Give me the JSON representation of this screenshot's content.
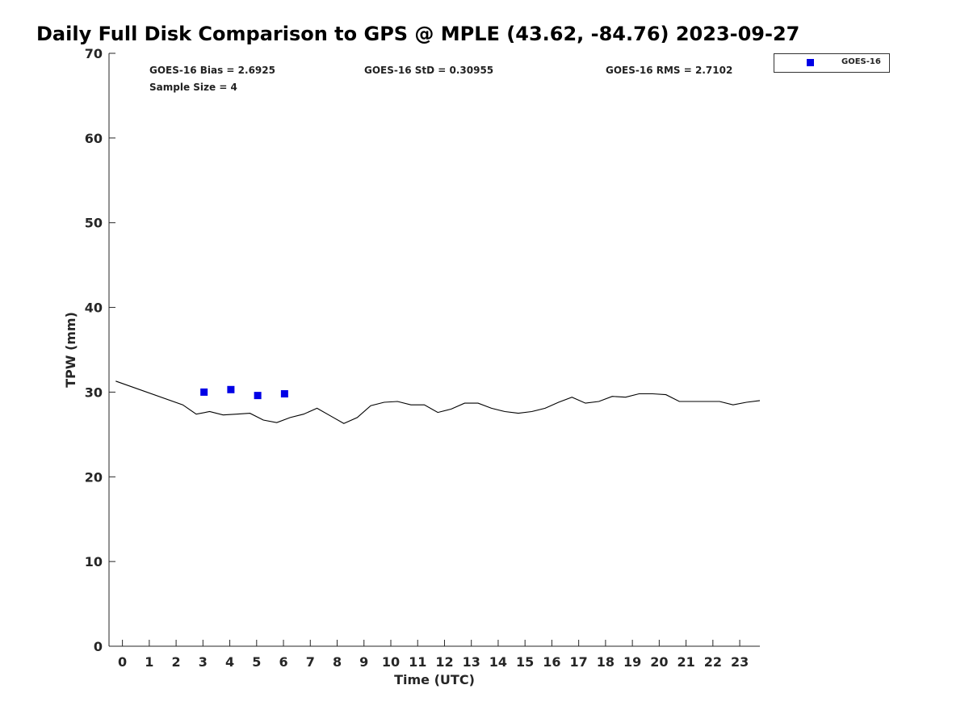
{
  "title": "Daily Full Disk Comparison to GPS @ MPLE (43.62, -84.76) 2023-09-27",
  "stats": {
    "bias": "GOES-16 Bias = 2.6925",
    "std": "GOES-16 StD = 0.30955",
    "rms": "GOES-16 RMS = 2.7102",
    "sample": "Sample Size = 4"
  },
  "legend": {
    "label": "GOES-16",
    "color": "#0000e6"
  },
  "chart_data": {
    "type": "scatter",
    "title": "Daily Full Disk Comparison to GPS @ MPLE (43.62, -84.76) 2023-09-27",
    "xlabel": "Time (UTC)",
    "ylabel": "TPW (mm)",
    "xlim": [
      -0.5,
      23.75
    ],
    "ylim": [
      0,
      70
    ],
    "xticks": [
      "0",
      "1",
      "2",
      "3",
      "4",
      "5",
      "6",
      "7",
      "8",
      "9",
      "10",
      "11",
      "12",
      "13",
      "14",
      "15",
      "16",
      "17",
      "18",
      "19",
      "20",
      "21",
      "22",
      "23"
    ],
    "yticks": [
      "0",
      "10",
      "20",
      "30",
      "40",
      "50",
      "60",
      "70"
    ],
    "grid": false,
    "legend_position": "outside-top-right",
    "series": [
      {
        "name": "GOES-16",
        "kind": "scatter",
        "color": "#0000e6",
        "x": [
          3.04,
          4.04,
          5.04,
          6.04
        ],
        "y": [
          30.0,
          30.3,
          29.6,
          29.8
        ]
      },
      {
        "kind": "line",
        "color": "#000000",
        "x": [
          -0.25,
          2.25,
          2.75,
          3.25,
          3.75,
          4.25,
          4.75,
          5.25,
          5.75,
          6.25,
          6.75,
          7.25,
          7.75,
          8.25,
          8.75,
          9.25,
          9.75,
          10.25,
          10.75,
          11.25,
          11.75,
          12.25,
          12.75,
          13.25,
          13.75,
          14.25,
          14.75,
          15.25,
          15.75,
          16.25,
          16.75,
          17.25,
          17.75,
          18.25,
          18.75,
          19.25,
          19.75,
          20.25,
          20.75,
          21.25,
          21.75,
          22.25,
          22.75,
          23.25,
          23.75
        ],
        "y": [
          31.3,
          28.5,
          27.4,
          27.7,
          27.3,
          27.4,
          27.5,
          26.7,
          26.4,
          27.0,
          27.4,
          28.1,
          27.2,
          26.3,
          27.0,
          28.4,
          28.8,
          28.9,
          28.5,
          28.5,
          27.6,
          28.0,
          28.7,
          28.7,
          28.1,
          27.7,
          27.5,
          27.7,
          28.1,
          28.8,
          29.4,
          28.7,
          28.9,
          29.5,
          29.4,
          29.8,
          29.8,
          29.7,
          28.9,
          28.9,
          28.9,
          28.9,
          28.5,
          28.8,
          29.0
        ]
      }
    ]
  }
}
